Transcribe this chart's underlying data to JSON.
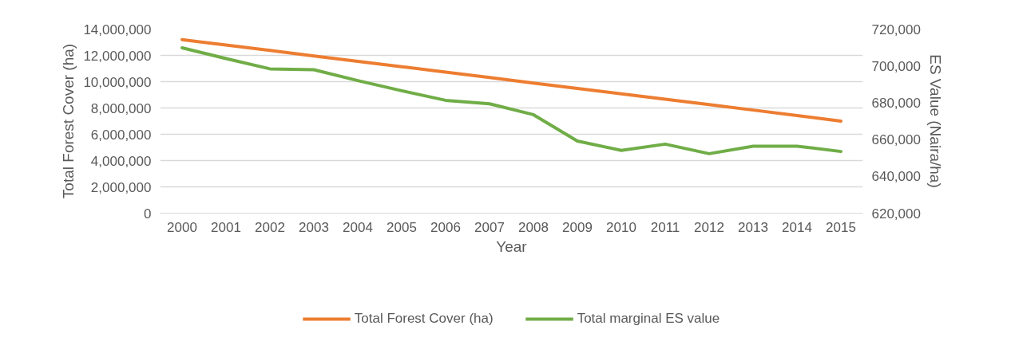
{
  "chart_data": {
    "type": "line",
    "xlabel": "Year",
    "ylabel": "Total Forest Cover (ha)",
    "y2label": "ES Value (Naira/ha)",
    "categories": [
      "2000",
      "2001",
      "2002",
      "2003",
      "2004",
      "2005",
      "2006",
      "2007",
      "2008",
      "2009",
      "2010",
      "2011",
      "2012",
      "2013",
      "2014",
      "2015"
    ],
    "series": [
      {
        "name": "Total Forest Cover (ha)",
        "color": "#ed7d31",
        "values": [
          13200000,
          12790000,
          12380000,
          11960000,
          11550000,
          11140000,
          10730000,
          10320000,
          9900000,
          9490000,
          9080000,
          8670000,
          8260000,
          7840000,
          7430000,
          7000000
        ]
      },
      {
        "name": "Total marginal ES value",
        "color": "#70ad47",
        "axis": "y2",
        "values": [
          709800,
          704000,
          698400,
          697900,
          692000,
          686500,
          681300,
          679400,
          673500,
          659200,
          654100,
          657500,
          652300,
          656400,
          656400,
          653500
        ]
      }
    ],
    "ylim": [
      0,
      14000000
    ],
    "yticks": [
      {
        "value": 0,
        "label": "0"
      },
      {
        "value": 2000000,
        "label": "2,000,000"
      },
      {
        "value": 4000000,
        "label": "4,000,000"
      },
      {
        "value": 6000000,
        "label": "6,000,000"
      },
      {
        "value": 8000000,
        "label": "8,000,000"
      },
      {
        "value": 10000000,
        "label": "10,000,000"
      },
      {
        "value": 12000000,
        "label": "12,000,000"
      },
      {
        "value": 14000000,
        "label": "14,000,000"
      }
    ],
    "y2lim": [
      620000,
      720000
    ],
    "y2ticks": [
      {
        "value": 620000,
        "label": "620,000"
      },
      {
        "value": 640000,
        "label": "640,000"
      },
      {
        "value": 660000,
        "label": "660,000"
      },
      {
        "value": 680000,
        "label": "680,000"
      },
      {
        "value": 700000,
        "label": "700,000"
      },
      {
        "value": 720000,
        "label": "720,000"
      }
    ],
    "grid": "y",
    "legend": "bottom",
    "marker": "none",
    "line_style": "solid"
  }
}
